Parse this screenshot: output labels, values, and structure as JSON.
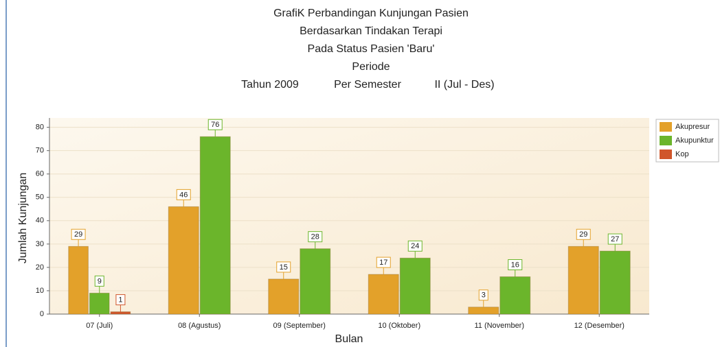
{
  "chart_data": {
    "type": "bar",
    "title": [
      "GrafiK Perbandingan Kunjungan Pasien",
      "Berdasarkan Tindakan Terapi",
      "Pada Status Pasien 'Baru'",
      "Periode"
    ],
    "subtitle": [
      "Tahun 2009",
      "Per Semester",
      "II (Jul - Des)"
    ],
    "x_label": "Bulan",
    "y_label": "Jumlah Kunjungan",
    "categories": [
      "07 (Juli)",
      "08 (Agustus)",
      "09 (September)",
      "10 (Oktober)",
      "11 (November)",
      "12 (Desember)"
    ],
    "series": [
      {
        "name": "Akupresur",
        "color": "#e3a12a",
        "values": [
          29,
          46,
          15,
          17,
          3,
          29
        ]
      },
      {
        "name": "Akupunktur",
        "color": "#6bb52b",
        "values": [
          9,
          76,
          28,
          24,
          16,
          27
        ]
      },
      {
        "name": "Kop",
        "color": "#d0562b",
        "values": [
          1,
          null,
          null,
          null,
          null,
          null
        ]
      }
    ],
    "ylim": [
      0,
      84
    ],
    "yticks": [
      0,
      10,
      20,
      30,
      40,
      50,
      60,
      70,
      80
    ],
    "grid": true,
    "legend": "top-right"
  }
}
